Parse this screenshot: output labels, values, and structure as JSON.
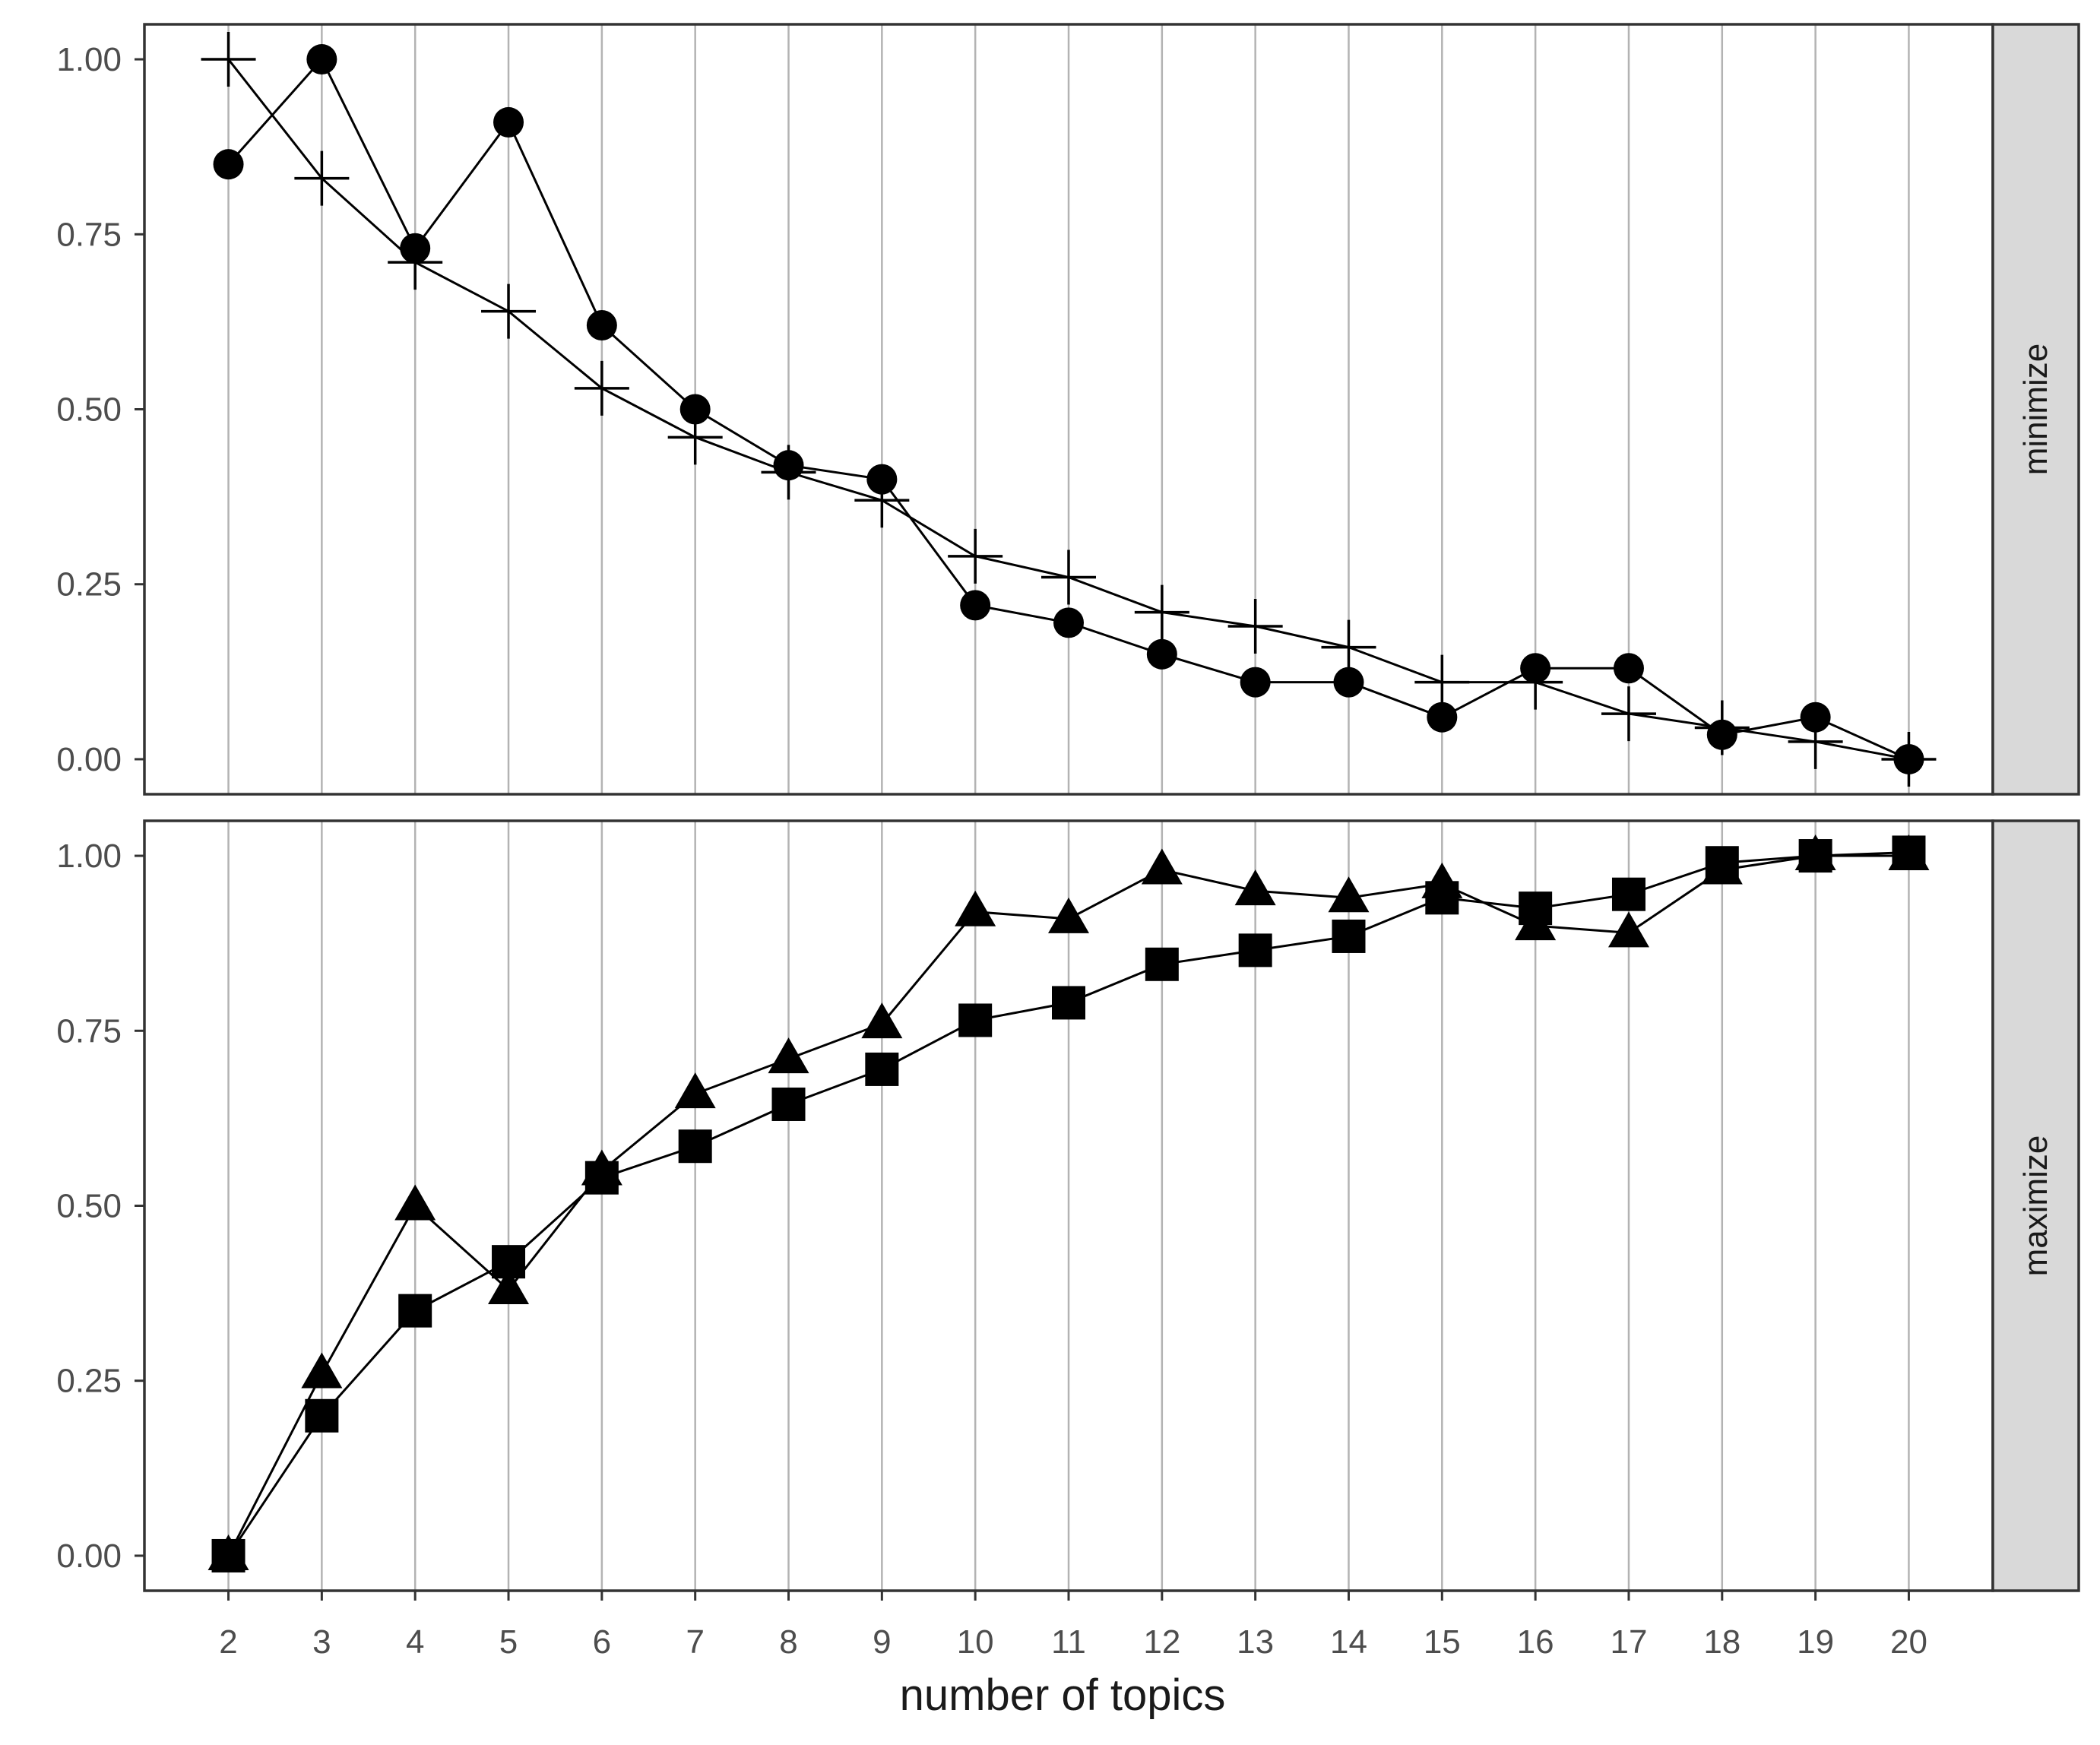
{
  "chart_data": {
    "type": "line",
    "xlabel": "number of topics",
    "x": [
      2,
      3,
      4,
      5,
      6,
      7,
      8,
      9,
      10,
      11,
      12,
      13,
      14,
      15,
      16,
      17,
      18,
      19,
      20
    ],
    "x_ticks": [
      "2",
      "3",
      "4",
      "5",
      "6",
      "7",
      "8",
      "9",
      "10",
      "11",
      "12",
      "13",
      "14",
      "15",
      "16",
      "17",
      "18",
      "19",
      "20"
    ],
    "y_ticks": [
      "0.00",
      "0.25",
      "0.50",
      "0.75",
      "1.00"
    ],
    "ylim": [
      -0.05,
      1.05
    ],
    "grid": "vertical major lines",
    "legend": "none",
    "panels": [
      {
        "strip": "minimize",
        "series": [
          {
            "marker": "circle",
            "values": [
              0.85,
              1.0,
              0.73,
              0.91,
              0.62,
              0.5,
              0.42,
              0.4,
              0.22,
              0.195,
              0.15,
              0.11,
              0.11,
              0.06,
              0.13,
              0.13,
              0.035,
              0.06,
              0.0
            ]
          },
          {
            "marker": "plus",
            "values": [
              1.0,
              0.83,
              0.71,
              0.64,
              0.53,
              0.46,
              0.41,
              0.37,
              0.29,
              0.26,
              0.21,
              0.19,
              0.16,
              0.11,
              0.11,
              0.065,
              0.045,
              0.025,
              0.0
            ]
          }
        ]
      },
      {
        "strip": "maximize",
        "series": [
          {
            "marker": "triangle",
            "values": [
              0.0,
              0.26,
              0.5,
              0.38,
              0.55,
              0.66,
              0.71,
              0.76,
              0.92,
              0.91,
              0.98,
              0.95,
              0.94,
              0.96,
              0.9,
              0.89,
              0.98,
              1.0,
              1.0
            ]
          },
          {
            "marker": "square",
            "values": [
              0.0,
              0.2,
              0.35,
              0.42,
              0.54,
              0.585,
              0.645,
              0.695,
              0.765,
              0.79,
              0.845,
              0.865,
              0.885,
              0.94,
              0.925,
              0.945,
              0.99,
              1.0,
              1.005
            ]
          }
        ]
      }
    ]
  }
}
